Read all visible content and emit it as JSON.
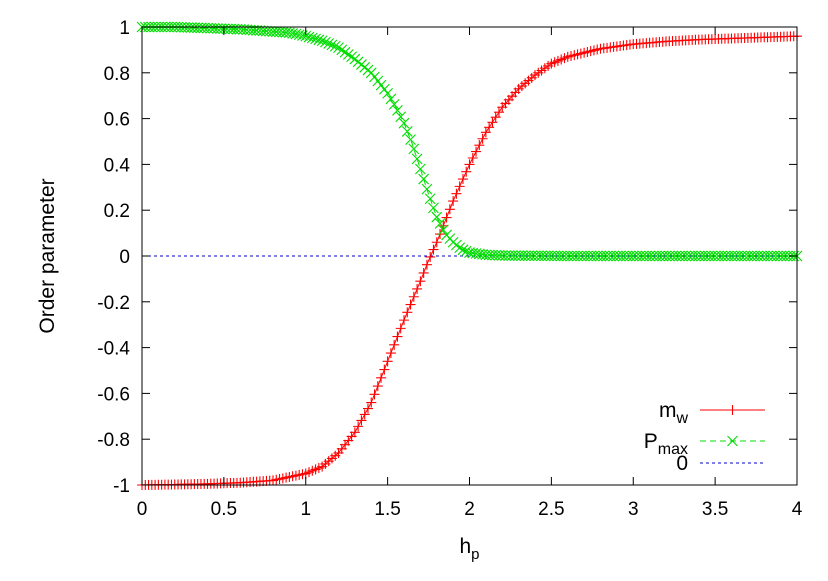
{
  "chart_data": {
    "type": "line",
    "xlabel": "h",
    "xlabel_sub": "p",
    "ylabel": "Order parameter",
    "xlim": [
      0,
      4
    ],
    "ylim": [
      -1,
      1
    ],
    "xticks": [
      "0",
      "0.5",
      "1",
      "1.5",
      "2",
      "2.5",
      "3",
      "3.5",
      "4"
    ],
    "yticks": [
      "-1",
      "-0.8",
      "-0.6",
      "-0.4",
      "-0.2",
      "0",
      "0.2",
      "0.4",
      "0.6",
      "0.8",
      "1"
    ],
    "grid": false,
    "legend_position": "bottom-right",
    "series": [
      {
        "name": "m",
        "name_sub": "w",
        "color": "#ff0000",
        "marker": "plus",
        "line": "solid",
        "x": [
          0,
          0.2,
          0.4,
          0.6,
          0.8,
          1.0,
          1.1,
          1.2,
          1.3,
          1.4,
          1.5,
          1.6,
          1.7,
          1.75,
          1.8,
          1.85,
          1.9,
          2.0,
          2.1,
          2.2,
          2.3,
          2.4,
          2.5,
          2.6,
          2.8,
          3.0,
          3.2,
          3.4,
          3.6,
          3.8,
          4.0
        ],
        "y": [
          -1,
          -0.998,
          -0.995,
          -0.99,
          -0.98,
          -0.95,
          -0.92,
          -0.86,
          -0.77,
          -0.64,
          -0.46,
          -0.28,
          -0.11,
          -0.02,
          0.06,
          0.15,
          0.24,
          0.4,
          0.54,
          0.65,
          0.73,
          0.79,
          0.84,
          0.87,
          0.905,
          0.925,
          0.937,
          0.945,
          0.95,
          0.955,
          0.96
        ]
      },
      {
        "name": "P",
        "name_sub": "max",
        "color": "#00dd00",
        "marker": "cross",
        "line": "dashed",
        "x": [
          0,
          0.2,
          0.4,
          0.6,
          0.8,
          0.9,
          1.0,
          1.1,
          1.2,
          1.3,
          1.4,
          1.5,
          1.55,
          1.6,
          1.65,
          1.7,
          1.75,
          1.8,
          1.85,
          1.9,
          1.95,
          2.0,
          2.1,
          2.2,
          2.4,
          2.6,
          3.0,
          3.5,
          4.0
        ],
        "y": [
          1,
          1,
          0.995,
          0.99,
          0.98,
          0.975,
          0.96,
          0.94,
          0.91,
          0.86,
          0.8,
          0.71,
          0.65,
          0.58,
          0.49,
          0.38,
          0.27,
          0.17,
          0.1,
          0.06,
          0.03,
          0.015,
          0.005,
          0.002,
          0.001,
          0.0,
          0.0,
          0.0,
          0.0
        ]
      },
      {
        "name": "0",
        "name_sub": "",
        "color": "#0000cc",
        "marker": "none",
        "line": "dotted",
        "x": [
          0,
          4
        ],
        "y": [
          0,
          0
        ]
      }
    ]
  }
}
